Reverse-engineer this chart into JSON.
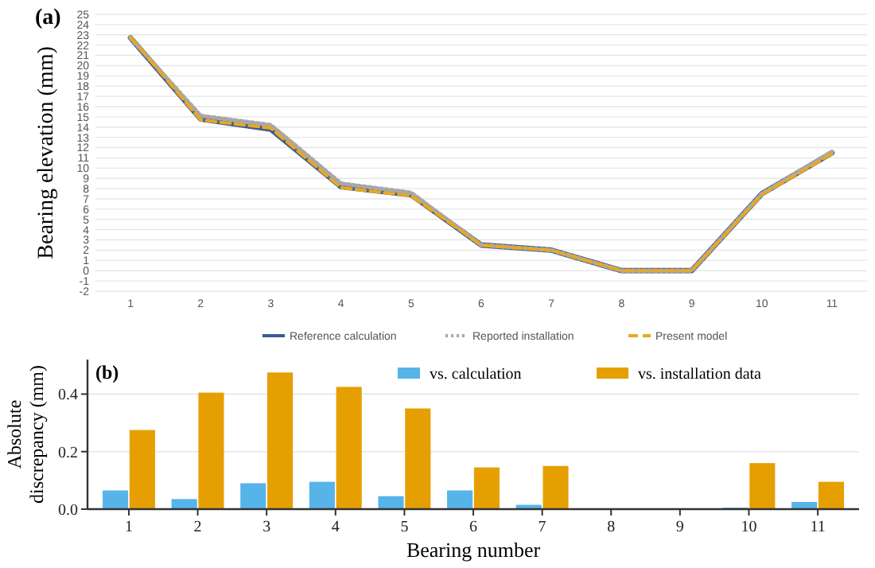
{
  "chart_data": [
    {
      "type": "line",
      "title": "(a)",
      "ylabel": "Bearing elevation (mm)",
      "categories": [
        "1",
        "2",
        "3",
        "4",
        "5",
        "6",
        "7",
        "8",
        "9",
        "10",
        "11"
      ],
      "ylim": [
        -2,
        25
      ],
      "yticks": [
        -2,
        -1,
        0,
        1,
        2,
        3,
        4,
        5,
        6,
        7,
        8,
        9,
        10,
        11,
        12,
        13,
        14,
        15,
        16,
        17,
        18,
        19,
        20,
        21,
        22,
        23,
        24,
        25
      ],
      "grid": "y",
      "legend": "bottom",
      "marker": "none",
      "series": [
        {
          "name": "Reference calculation",
          "color": "#3c5a9a",
          "line_style": "solid",
          "values": [
            22.7,
            14.8,
            13.8,
            8.2,
            7.4,
            2.5,
            2.0,
            0,
            0,
            7.5,
            11.5
          ]
        },
        {
          "name": "Reported installation",
          "color": "#a8a8a8",
          "line_style": "dotted",
          "values": [
            22.7,
            15.1,
            14.2,
            8.5,
            7.6,
            2.5,
            2.0,
            0,
            0,
            7.5,
            11.6
          ]
        },
        {
          "name": "Present model",
          "color": "#e8a820",
          "line_style": "dashed",
          "values": [
            22.8,
            14.7,
            13.9,
            8.1,
            7.3,
            2.5,
            2.0,
            0,
            0,
            7.4,
            11.4
          ]
        }
      ]
    },
    {
      "type": "bar",
      "title": "(b)",
      "xlabel": "Bearing number",
      "ylabel": "Absolute discrepancy (mm)",
      "categories": [
        "1",
        "2",
        "3",
        "4",
        "5",
        "6",
        "7",
        "8",
        "9",
        "10",
        "11"
      ],
      "ylim": [
        0,
        0.52
      ],
      "yticks": [
        {
          "value": 0,
          "label": "0.0"
        },
        {
          "value": 0.2,
          "label": "0.2"
        },
        {
          "value": 0.4,
          "label": "0.4"
        }
      ],
      "grid": "y",
      "legend": "top",
      "series": [
        {
          "name": "vs. calculation",
          "color": "#56b4e9",
          "values": [
            0.065,
            0.035,
            0.09,
            0.095,
            0.045,
            0.065,
            0.015,
            0,
            0,
            0.005,
            0.025
          ]
        },
        {
          "name": "vs. installation data",
          "color": "#e69f00",
          "values": [
            0.275,
            0.405,
            0.475,
            0.425,
            0.35,
            0.145,
            0.15,
            0,
            0,
            0.16,
            0.095
          ]
        }
      ]
    }
  ]
}
